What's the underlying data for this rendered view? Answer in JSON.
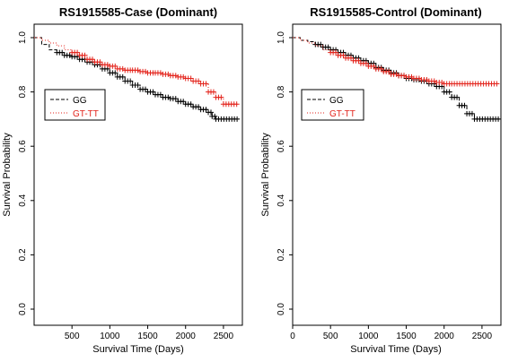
{
  "chart_data": [
    {
      "type": "line",
      "subtype": "kaplan-meier",
      "title": "RS1915585-Case (Dominant)",
      "xlabel": "Survival Time (Days)",
      "ylabel": "Survival Probability",
      "xlim": [
        0,
        2750
      ],
      "ylim": [
        0,
        1.0
      ],
      "xticks": [
        500,
        1000,
        1500,
        2000,
        2500
      ],
      "yticks": [
        0.0,
        0.2,
        0.4,
        0.6,
        0.8,
        1.0
      ],
      "x_tick_labels": [
        "500",
        "1000",
        "1500",
        "2000",
        "2500"
      ],
      "y_tick_labels": [
        "0.0",
        "0.2",
        "0.4",
        "0.6",
        "0.8",
        "1.0"
      ],
      "grid": false,
      "legend_position": "upper-left",
      "series": [
        {
          "name": "GG",
          "color": "#000000",
          "style": "dashed",
          "points": [
            [
              0,
              1.0
            ],
            [
              100,
              0.975
            ],
            [
              200,
              0.955
            ],
            [
              300,
              0.945
            ],
            [
              400,
              0.935
            ],
            [
              500,
              0.93
            ],
            [
              600,
              0.92
            ],
            [
              700,
              0.91
            ],
            [
              800,
              0.9
            ],
            [
              900,
              0.885
            ],
            [
              1000,
              0.87
            ],
            [
              1100,
              0.855
            ],
            [
              1200,
              0.84
            ],
            [
              1300,
              0.825
            ],
            [
              1400,
              0.81
            ],
            [
              1500,
              0.8
            ],
            [
              1600,
              0.79
            ],
            [
              1700,
              0.78
            ],
            [
              1800,
              0.775
            ],
            [
              1900,
              0.765
            ],
            [
              2000,
              0.755
            ],
            [
              2100,
              0.745
            ],
            [
              2200,
              0.735
            ],
            [
              2300,
              0.725
            ],
            [
              2350,
              0.71
            ],
            [
              2400,
              0.7
            ],
            [
              2700,
              0.7
            ]
          ]
        },
        {
          "name": "GT-TT",
          "color": "#e3231b",
          "style": "dotted",
          "points": [
            [
              0,
              1.0
            ],
            [
              100,
              0.99
            ],
            [
              200,
              0.98
            ],
            [
              300,
              0.97
            ],
            [
              400,
              0.955
            ],
            [
              500,
              0.945
            ],
            [
              600,
              0.935
            ],
            [
              700,
              0.92
            ],
            [
              800,
              0.91
            ],
            [
              900,
              0.9
            ],
            [
              1000,
              0.895
            ],
            [
              1100,
              0.885
            ],
            [
              1200,
              0.88
            ],
            [
              1300,
              0.88
            ],
            [
              1400,
              0.875
            ],
            [
              1500,
              0.87
            ],
            [
              1600,
              0.87
            ],
            [
              1700,
              0.865
            ],
            [
              1800,
              0.86
            ],
            [
              1900,
              0.855
            ],
            [
              2000,
              0.85
            ],
            [
              2100,
              0.84
            ],
            [
              2200,
              0.83
            ],
            [
              2300,
              0.8
            ],
            [
              2400,
              0.78
            ],
            [
              2500,
              0.755
            ],
            [
              2700,
              0.755
            ]
          ]
        }
      ]
    },
    {
      "type": "line",
      "subtype": "kaplan-meier",
      "title": "RS1915585-Control (Dominant)",
      "xlabel": "Survival Time (Days)",
      "ylabel": "Survival Probability",
      "xlim": [
        0,
        2750
      ],
      "ylim": [
        0,
        1.0
      ],
      "xticks": [
        0,
        500,
        1000,
        1500,
        2000,
        2500
      ],
      "yticks": [
        0.0,
        0.2,
        0.4,
        0.6,
        0.8,
        1.0
      ],
      "x_tick_labels": [
        "0",
        "500",
        "1000",
        "1500",
        "2000",
        "2500"
      ],
      "y_tick_labels": [
        "0.0",
        "0.2",
        "0.4",
        "0.6",
        "0.8",
        "1.0"
      ],
      "grid": false,
      "legend_position": "upper-left",
      "series": [
        {
          "name": "GG",
          "color": "#000000",
          "style": "dashed",
          "points": [
            [
              0,
              1.0
            ],
            [
              100,
              0.99
            ],
            [
              200,
              0.985
            ],
            [
              300,
              0.975
            ],
            [
              400,
              0.965
            ],
            [
              500,
              0.955
            ],
            [
              600,
              0.945
            ],
            [
              700,
              0.935
            ],
            [
              800,
              0.925
            ],
            [
              900,
              0.915
            ],
            [
              1000,
              0.905
            ],
            [
              1100,
              0.89
            ],
            [
              1200,
              0.88
            ],
            [
              1300,
              0.87
            ],
            [
              1400,
              0.86
            ],
            [
              1500,
              0.85
            ],
            [
              1600,
              0.845
            ],
            [
              1700,
              0.84
            ],
            [
              1800,
              0.83
            ],
            [
              1900,
              0.82
            ],
            [
              2000,
              0.8
            ],
            [
              2100,
              0.78
            ],
            [
              2200,
              0.75
            ],
            [
              2300,
              0.72
            ],
            [
              2400,
              0.7
            ],
            [
              2750,
              0.7
            ]
          ]
        },
        {
          "name": "GT-TT",
          "color": "#e3231b",
          "style": "dotted",
          "points": [
            [
              0,
              1.0
            ],
            [
              100,
              0.99
            ],
            [
              200,
              0.98
            ],
            [
              300,
              0.97
            ],
            [
              400,
              0.955
            ],
            [
              500,
              0.945
            ],
            [
              600,
              0.935
            ],
            [
              700,
              0.925
            ],
            [
              800,
              0.915
            ],
            [
              900,
              0.905
            ],
            [
              1000,
              0.895
            ],
            [
              1100,
              0.885
            ],
            [
              1200,
              0.875
            ],
            [
              1300,
              0.865
            ],
            [
              1400,
              0.86
            ],
            [
              1500,
              0.855
            ],
            [
              1600,
              0.85
            ],
            [
              1700,
              0.845
            ],
            [
              1800,
              0.84
            ],
            [
              1900,
              0.835
            ],
            [
              2000,
              0.83
            ],
            [
              2100,
              0.83
            ],
            [
              2700,
              0.83
            ]
          ]
        }
      ]
    }
  ]
}
